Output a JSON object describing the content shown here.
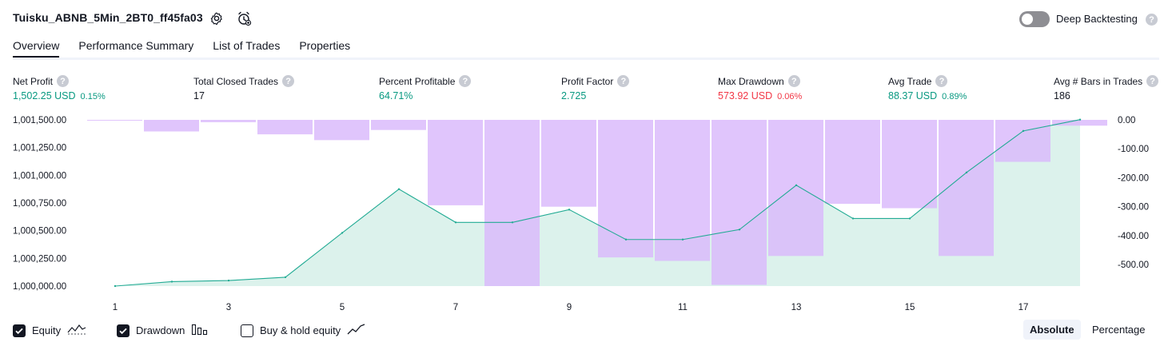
{
  "header": {
    "strategy_name": "Tuisku_ABNB_5Min_2BT0_ff45fa03",
    "deep_backtesting_label": "Deep Backtesting",
    "deep_backtesting_on": false,
    "help_glyph": "?"
  },
  "tabs": [
    "Overview",
    "Performance Summary",
    "List of Trades",
    "Properties"
  ],
  "metrics": [
    {
      "label": "Net Profit",
      "value": "1,502.25 USD",
      "pct": "0.15%",
      "tone": "pos"
    },
    {
      "label": "Total Closed Trades",
      "value": "17",
      "pct": "",
      "tone": "neutral"
    },
    {
      "label": "Percent Profitable",
      "value": "64.71%",
      "pct": "",
      "tone": "pos"
    },
    {
      "label": "Profit Factor",
      "value": "2.725",
      "pct": "",
      "tone": "pos"
    },
    {
      "label": "Max Drawdown",
      "value": "573.92 USD",
      "pct": "0.06%",
      "tone": "neg"
    },
    {
      "label": "Avg Trade",
      "value": "88.37 USD",
      "pct": "0.89%",
      "tone": "pos"
    },
    {
      "label": "Avg # Bars in Trades",
      "value": "186",
      "pct": "",
      "tone": "neutral"
    }
  ],
  "chart_data": {
    "type": "area",
    "x": [
      1,
      2,
      3,
      4,
      5,
      6,
      7,
      8,
      9,
      10,
      11,
      12,
      13,
      14,
      15,
      16,
      17,
      18
    ],
    "x_tick_labels": [
      "1",
      "3",
      "5",
      "7",
      "9",
      "11",
      "13",
      "15",
      "17"
    ],
    "series": [
      {
        "name": "Equity",
        "axis": "left",
        "values": [
          1000000,
          1000040,
          1000050,
          1000080,
          1000480,
          1000875,
          1000575,
          1000575,
          1000690,
          1000420,
          1000420,
          1000510,
          1000910,
          1000610,
          1000610,
          1001025,
          1001400,
          1001502.25
        ]
      },
      {
        "name": "Drawdown",
        "axis": "right",
        "type": "bar",
        "values": [
          -2,
          -40,
          -8,
          -50,
          -70,
          -35,
          -295,
          -574,
          -300,
          -475,
          -487,
          -570,
          -470,
          -290,
          -305,
          -470,
          -145,
          -20
        ]
      }
    ],
    "left_axis": {
      "ylim": [
        1000000,
        1001500
      ],
      "ticks": [
        "1,001,500.00",
        "1,001,250.00",
        "1,001,000.00",
        "1,000,750.00",
        "1,000,500.00",
        "1,000,250.00",
        "1,000,000.00"
      ]
    },
    "right_axis": {
      "ylim": [
        -574,
        0
      ],
      "ticks": [
        "0.00",
        "-100.00",
        "-200.00",
        "-300.00",
        "-400.00",
        "-500.00"
      ]
    },
    "colors": {
      "equity_line": "#22ab94",
      "equity_fill": "#dcf2ec",
      "drawdown": "#d9b8fb"
    }
  },
  "legend": [
    {
      "label": "Equity",
      "checked": true,
      "icon": "equity-line-icon"
    },
    {
      "label": "Drawdown",
      "checked": true,
      "icon": "drawdown-bars-icon"
    },
    {
      "label": "Buy & hold equity",
      "checked": false,
      "icon": "buy-hold-line-icon"
    }
  ],
  "view_mode": {
    "options": [
      "Absolute",
      "Percentage"
    ],
    "selected": "Absolute"
  }
}
